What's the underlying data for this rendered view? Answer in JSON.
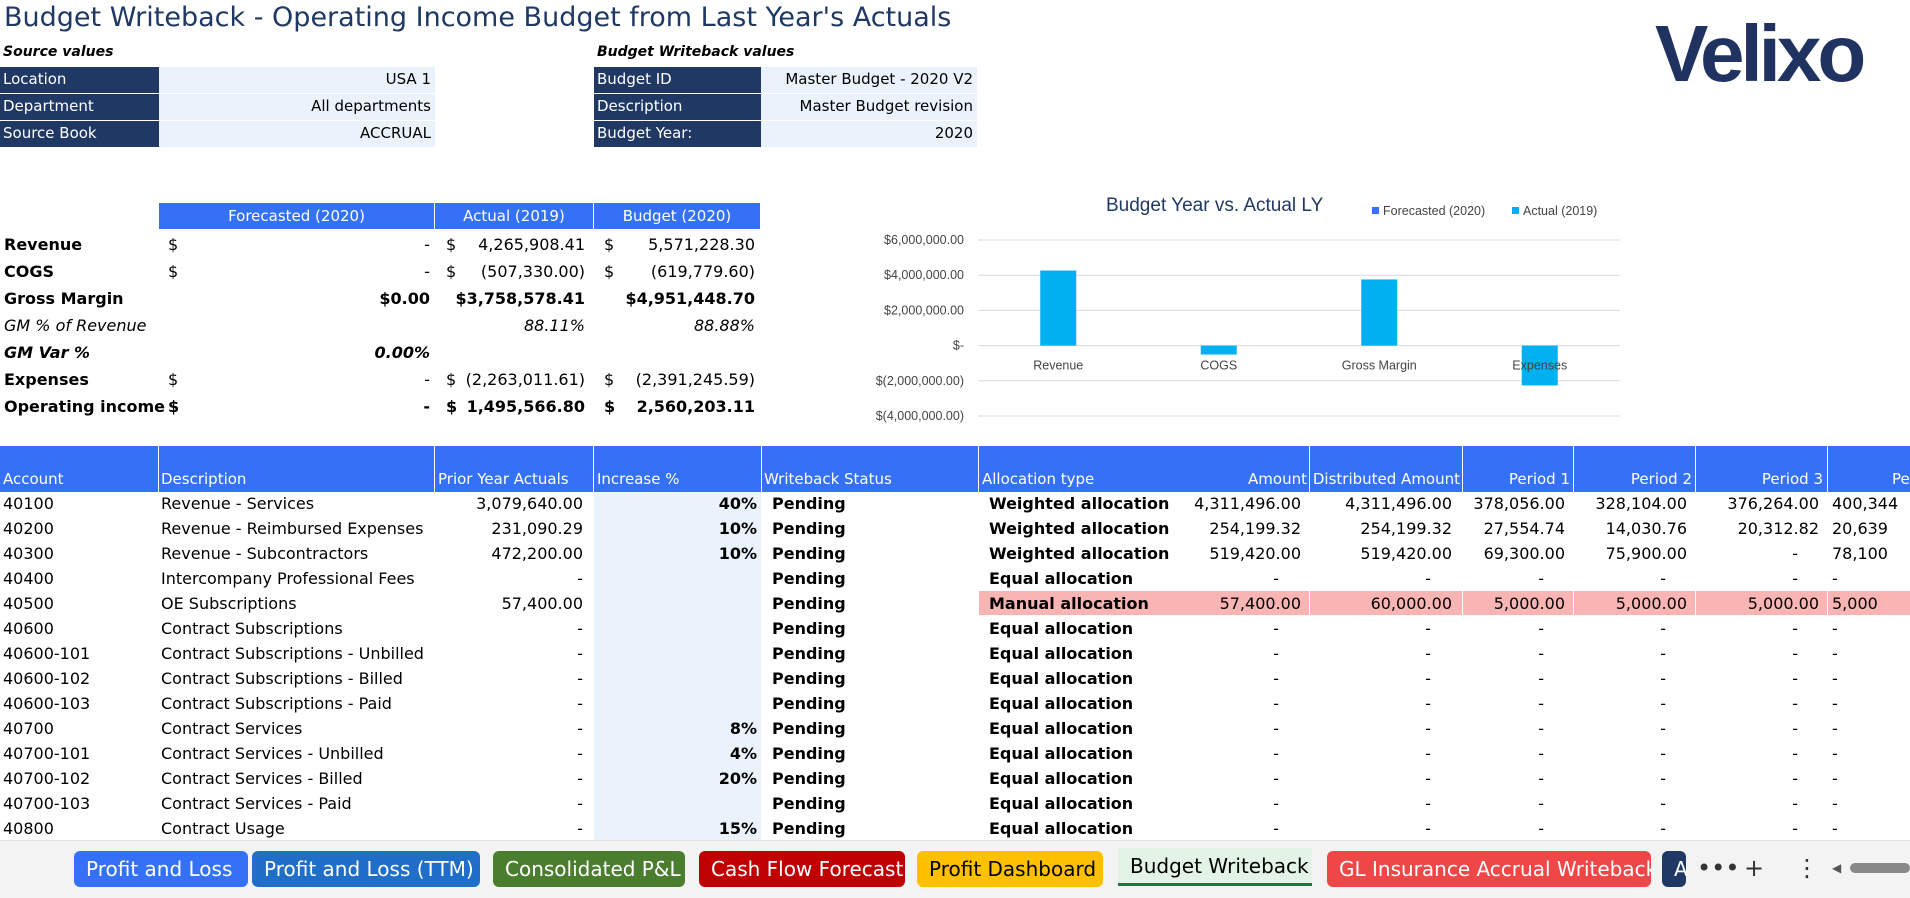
{
  "title": "Budget Writeback - Operating Income Budget from Last Year's Actuals",
  "logo": "Velixo",
  "source": {
    "heading": "Source values",
    "rows": [
      {
        "label": "Location",
        "value": "USA 1"
      },
      {
        "label": "Department",
        "value": "All departments"
      },
      {
        "label": "Source Book",
        "value": "ACCRUAL"
      }
    ]
  },
  "writeback": {
    "heading": "Budget Writeback values",
    "rows": [
      {
        "label": "Budget ID",
        "value": "Master Budget - 2020 V2"
      },
      {
        "label": "Description",
        "value": "Master Budget revision"
      },
      {
        "label": "Budget Year:",
        "value": "2020"
      }
    ]
  },
  "summary": {
    "headers": [
      "Forecasted (2020)",
      "Actual (2019)",
      "Budget (2020)"
    ],
    "rows": [
      {
        "label": "Revenue",
        "f_cur": "$",
        "f": "-",
        "a_cur": "$",
        "a": "4,265,908.41",
        "b_cur": "$",
        "b": "5,571,228.30"
      },
      {
        "label": "COGS",
        "f_cur": "$",
        "f": "-",
        "a_cur": "$",
        "a": "(507,330.00)",
        "b_cur": "$",
        "b": "(619,779.60)"
      },
      {
        "label": "Gross Margin",
        "f_cur": "",
        "f": "$0.00",
        "a_cur": "",
        "a": "$3,758,578.41",
        "b_cur": "",
        "b": "$4,951,448.70"
      },
      {
        "label": "GM % of Revenue",
        "f_cur": "",
        "f": "",
        "a_cur": "",
        "a": "88.11%",
        "b_cur": "",
        "b": "88.88%"
      },
      {
        "label": "GM Var %",
        "f_cur": "",
        "f": "0.00%",
        "a_cur": "",
        "a": "",
        "b_cur": "",
        "b": ""
      },
      {
        "label": "Expenses",
        "f_cur": "$",
        "f": "-",
        "a_cur": "$",
        "a": "(2,263,011.61)",
        "b_cur": "$",
        "b": "(2,391,245.59)"
      },
      {
        "label": "Operating income",
        "f_cur": "$",
        "f": "-",
        "a_cur": "$",
        "a": "1,495,566.80",
        "b_cur": "$",
        "b": "2,560,203.11"
      }
    ]
  },
  "chart_data": {
    "type": "bar",
    "title": "Budget Year vs. Actual LY",
    "categories": [
      "Revenue",
      "COGS",
      "Gross Margin",
      "Expenses"
    ],
    "series": [
      {
        "name": "Forecasted (2020)",
        "values": [
          0,
          0,
          0,
          0
        ],
        "color": "#3471f7"
      },
      {
        "name": "Actual (2019)",
        "values": [
          4265908.41,
          -507330.0,
          3758578.41,
          -2263011.61
        ],
        "color": "#00b0f0"
      }
    ],
    "ylim": [
      -4000000,
      6000000
    ],
    "yticks": [
      6000000,
      4000000,
      2000000,
      0,
      -2000000,
      -4000000
    ],
    "ytick_labels": [
      "$6,000,000.00",
      "$4,000,000.00",
      "$2,000,000.00",
      "$-",
      "$(2,000,000.00)",
      "$(4,000,000.00)"
    ],
    "legend": "top-right",
    "grid": true
  },
  "table": {
    "headers": [
      "Account",
      "Description",
      "Prior Year Actuals",
      "Increase %",
      "Writeback Status",
      "Allocation type",
      "Amount",
      "Distributed Amount",
      "Period 1",
      "Period 2",
      "Period 3",
      "Peri"
    ],
    "rows": [
      {
        "account": "40100",
        "desc": "Revenue - Services",
        "prior": "3,079,640.00",
        "inc": "40%",
        "status": "Pending",
        "alloc": "Weighted allocation",
        "amount": "4,311,496.00",
        "dist": "4,311,496.00",
        "p1": "378,056.00",
        "p2": "328,104.00",
        "p3": "376,264.00",
        "p4": "400,344"
      },
      {
        "account": "40200",
        "desc": "Revenue - Reimbursed Expenses",
        "prior": "231,090.29",
        "inc": "10%",
        "status": "Pending",
        "alloc": "Weighted allocation",
        "amount": "254,199.32",
        "dist": "254,199.32",
        "p1": "27,554.74",
        "p2": "14,030.76",
        "p3": "20,312.82",
        "p4": "20,639"
      },
      {
        "account": "40300",
        "desc": "Revenue - Subcontractors",
        "prior": "472,200.00",
        "inc": "10%",
        "status": "Pending",
        "alloc": "Weighted allocation",
        "amount": "519,420.00",
        "dist": "519,420.00",
        "p1": "69,300.00",
        "p2": "75,900.00",
        "p3": "-",
        "p4": "78,100"
      },
      {
        "account": "40400",
        "desc": "Intercompany Professional Fees",
        "prior": "-",
        "inc": "",
        "status": "Pending",
        "alloc": "Equal allocation",
        "amount": "-",
        "dist": "-",
        "p1": "-",
        "p2": "-",
        "p3": "-",
        "p4": "-"
      },
      {
        "account": "40500",
        "desc": "OE Subscriptions",
        "prior": "57,400.00",
        "inc": "",
        "status": "Pending",
        "alloc": "Manual allocation",
        "amount": "57,400.00",
        "dist": "60,000.00",
        "p1": "5,000.00",
        "p2": "5,000.00",
        "p3": "5,000.00",
        "p4": "5,000"
      },
      {
        "account": "40600",
        "desc": "Contract Subscriptions",
        "prior": "-",
        "inc": "",
        "status": "Pending",
        "alloc": "Equal allocation",
        "amount": "-",
        "dist": "-",
        "p1": "-",
        "p2": "-",
        "p3": "-",
        "p4": "-"
      },
      {
        "account": "40600-101",
        "desc": "Contract Subscriptions - Unbilled",
        "prior": "-",
        "inc": "",
        "status": "Pending",
        "alloc": "Equal allocation",
        "amount": "-",
        "dist": "-",
        "p1": "-",
        "p2": "-",
        "p3": "-",
        "p4": "-"
      },
      {
        "account": "40600-102",
        "desc": "Contract Subscriptions - Billed",
        "prior": "-",
        "inc": "",
        "status": "Pending",
        "alloc": "Equal allocation",
        "amount": "-",
        "dist": "-",
        "p1": "-",
        "p2": "-",
        "p3": "-",
        "p4": "-"
      },
      {
        "account": "40600-103",
        "desc": "Contract Subscriptions - Paid",
        "prior": "-",
        "inc": "",
        "status": "Pending",
        "alloc": "Equal allocation",
        "amount": "-",
        "dist": "-",
        "p1": "-",
        "p2": "-",
        "p3": "-",
        "p4": "-"
      },
      {
        "account": "40700",
        "desc": "Contract Services",
        "prior": "-",
        "inc": "8%",
        "status": "Pending",
        "alloc": "Equal allocation",
        "amount": "-",
        "dist": "-",
        "p1": "-",
        "p2": "-",
        "p3": "-",
        "p4": "-"
      },
      {
        "account": "40700-101",
        "desc": "Contract Services - Unbilled",
        "prior": "-",
        "inc": "4%",
        "status": "Pending",
        "alloc": "Equal allocation",
        "amount": "-",
        "dist": "-",
        "p1": "-",
        "p2": "-",
        "p3": "-",
        "p4": "-"
      },
      {
        "account": "40700-102",
        "desc": "Contract Services - Billed",
        "prior": "-",
        "inc": "20%",
        "status": "Pending",
        "alloc": "Equal allocation",
        "amount": "-",
        "dist": "-",
        "p1": "-",
        "p2": "-",
        "p3": "-",
        "p4": "-"
      },
      {
        "account": "40700-103",
        "desc": "Contract Services - Paid",
        "prior": "-",
        "inc": "",
        "status": "Pending",
        "alloc": "Equal allocation",
        "amount": "-",
        "dist": "-",
        "p1": "-",
        "p2": "-",
        "p3": "-",
        "p4": "-"
      },
      {
        "account": "40800",
        "desc": "Contract Usage",
        "prior": "-",
        "inc": "15%",
        "status": "Pending",
        "alloc": "Equal allocation",
        "amount": "-",
        "dist": "-",
        "p1": "-",
        "p2": "-",
        "p3": "-",
        "p4": "-"
      }
    ]
  },
  "tabs": [
    {
      "label": "Profit and Loss",
      "bg": "#3471f7",
      "fg": "#ffffff"
    },
    {
      "label": "Profit and Loss (TTM)",
      "bg": "#1f6fc8",
      "fg": "#ffffff"
    },
    {
      "label": "Consolidated P&L",
      "bg": "#4a7d2e",
      "fg": "#ffffff"
    },
    {
      "label": "Cash Flow Forecast",
      "bg": "#c00000",
      "fg": "#ffffff"
    },
    {
      "label": "Profit Dashboard",
      "bg": "#ffc000",
      "fg": "#000000"
    },
    {
      "label": "Budget Writeback",
      "bg": "#e3f3e6",
      "fg": "#000000",
      "active": true
    },
    {
      "label": "GL Insurance Accrual Writeback",
      "bg": "#ef4747",
      "fg": "#ffffff"
    },
    {
      "label": "A",
      "bg": "#1f3864",
      "fg": "#ffffff"
    }
  ],
  "toolbar": {
    "more": "•••",
    "add": "+",
    "options": "⋮",
    "scroll_left": "◀"
  }
}
